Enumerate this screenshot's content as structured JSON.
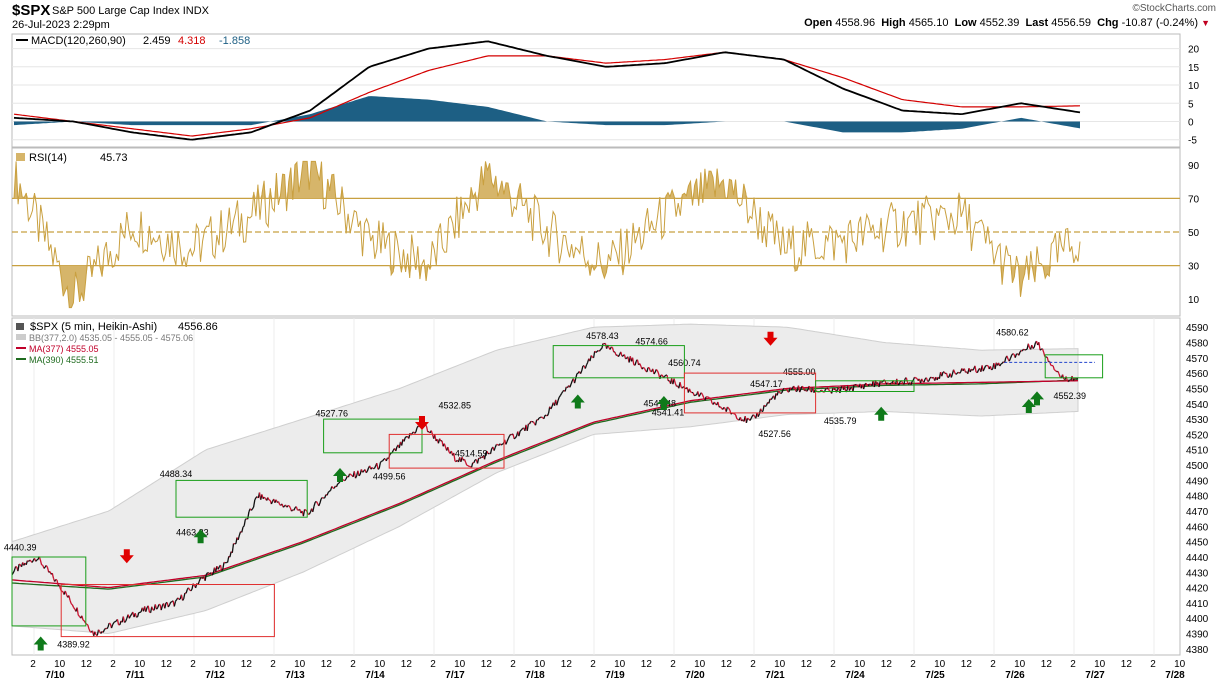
{
  "header": {
    "symbol": "$SPX",
    "name": "S&P 500 Large Cap Index",
    "exchange": "INDX",
    "datetime": "26-Jul-2023 2:29pm",
    "credit": "©StockCharts.com",
    "open_label": "Open",
    "open": "4558.96",
    "high_label": "High",
    "high": "4565.10",
    "low_label": "Low",
    "low": "4552.39",
    "last_label": "Last",
    "last": "4556.59",
    "chg_label": "Chg",
    "chg": "-10.87 (-0.24%)"
  },
  "colors": {
    "price_up": "#101010",
    "price_down": "#c8102e",
    "bb_fill": "#ececec",
    "ma377": "#c0002a",
    "ma390": "#1f6b1f",
    "macd_line": "#000000",
    "signal_line": "#d40000",
    "histogram": "#1d5f84",
    "rsi_line": "#c9a040",
    "buy_arrow": "#0f7a1a",
    "sell_arrow": "#e00000"
  },
  "chart_data": [
    {
      "type": "area",
      "title": "MACD(120,260,90)",
      "values_label": [
        "2.459",
        "4.318",
        "-1.858"
      ],
      "ylim": [
        -7,
        24
      ],
      "y_ticks": [
        20,
        15,
        10,
        5,
        0,
        -5
      ],
      "x": [
        0,
        1,
        2,
        3,
        4,
        5,
        6,
        7,
        8,
        9,
        10,
        11,
        12,
        13,
        14,
        15,
        16,
        17,
        18
      ],
      "series": [
        {
          "role": "macd",
          "values": [
            1,
            0,
            -3,
            -5,
            -3,
            3,
            15,
            20,
            22,
            18,
            15,
            16,
            19,
            17,
            9,
            3,
            2,
            5,
            2.5
          ]
        },
        {
          "role": "signal",
          "values": [
            2,
            0,
            -2,
            -4,
            -2,
            1,
            8,
            14,
            18,
            18,
            16,
            17,
            19,
            17,
            12,
            6,
            4,
            4,
            4.3
          ]
        },
        {
          "role": "histogram",
          "values": [
            -1,
            0,
            -1,
            -1,
            -1,
            2,
            7,
            6,
            4,
            0,
            -1,
            -1,
            0,
            0,
            -3,
            -3,
            -2,
            1,
            -1.9
          ]
        }
      ]
    },
    {
      "type": "line",
      "title": "RSI(14)",
      "value_label": "45.73",
      "ylim": [
        0,
        100
      ],
      "y_ticks": [
        90,
        70,
        50,
        30,
        10
      ],
      "levels": [
        70,
        50,
        30
      ],
      "x": [
        0,
        1,
        2,
        3,
        4,
        5,
        6,
        7,
        8,
        9,
        10,
        11,
        12,
        13,
        14,
        15,
        16,
        17,
        18
      ],
      "values": [
        85,
        10,
        55,
        40,
        60,
        88,
        45,
        30,
        85,
        50,
        30,
        60,
        80,
        40,
        45,
        55,
        60,
        20,
        45.73
      ]
    },
    {
      "type": "line",
      "title": "$SPX (5 min, Heikin-Ashi)",
      "value_label": "4556.86",
      "legend": [
        {
          "label": "BB(377,2.0)",
          "values": "4535.05 - 4555.05 - 4575.06"
        },
        {
          "label": "MA(377)",
          "value": "4555.05"
        },
        {
          "label": "MA(390)",
          "value": "4555.51"
        }
      ],
      "ylim": [
        4376,
        4596
      ],
      "y_ticks": [
        4590,
        4580,
        4570,
        4560,
        4550,
        4540,
        4530,
        4520,
        4510,
        4500,
        4490,
        4480,
        4470,
        4460,
        4450,
        4440,
        4430,
        4420,
        4410,
        4400,
        4390,
        4380
      ],
      "x_ticks": [
        "2",
        "10",
        "12",
        "2",
        "10",
        "12",
        "2",
        "10",
        "12",
        "2",
        "10",
        "12",
        "2",
        "10",
        "12",
        "2",
        "10",
        "12",
        "2",
        "10",
        "12",
        "2",
        "10",
        "12",
        "2",
        "10",
        "12",
        "2",
        "10",
        "12",
        "2",
        "10",
        "12",
        "2",
        "10",
        "12",
        "2",
        "10",
        "12",
        "2",
        "10",
        "12",
        "2",
        "10",
        "12",
        "2",
        "10",
        "12",
        "2",
        "10",
        "12",
        "2",
        "10",
        "12",
        "2"
      ],
      "date_labels": [
        "7/10",
        "7/11",
        "7/12",
        "7/13",
        "7/14",
        "7/17",
        "7/18",
        "7/19",
        "7/20",
        "7/21",
        "7/24",
        "7/25",
        "7/26",
        "7/27",
        "7/28"
      ],
      "x": [
        0,
        0.3,
        0.6,
        1.0,
        1.6,
        2.0,
        2.3,
        2.6,
        3.0,
        3.6,
        4.0,
        4.5,
        5.0,
        5.4,
        5.6,
        6.0,
        6.5,
        7.0,
        7.2,
        7.5,
        8.0,
        8.4,
        9.0,
        9.3,
        9.5,
        10.0,
        10.5,
        11.0,
        11.5,
        12.0,
        12.5,
        12.8,
        13.0
      ],
      "values": [
        4430,
        4440,
        4420,
        4390,
        4405,
        4410,
        4425,
        4435,
        4480,
        4468,
        4490,
        4500,
        4527,
        4505,
        4500,
        4515,
        4532,
        4565,
        4578,
        4570,
        4556,
        4545,
        4528,
        4545,
        4550,
        4548,
        4553,
        4555,
        4560,
        4565,
        4580,
        4557,
        4556.6
      ],
      "bb_upper": [
        4450,
        4470,
        4510,
        4530,
        4550,
        4575,
        4590,
        4592,
        4590,
        4580,
        4575,
        4576
      ],
      "bb_lower": [
        4395,
        4390,
        4405,
        4430,
        4460,
        4495,
        4520,
        4525,
        4533,
        4535,
        4532,
        4535
      ],
      "ma377": [
        4425,
        4420,
        4428,
        4450,
        4475,
        4503,
        4528,
        4542,
        4550,
        4553,
        4554,
        4555.05
      ],
      "ma390": [
        4423,
        4419,
        4427,
        4449,
        4474,
        4502,
        4527,
        4541,
        4549,
        4552,
        4553,
        4555.51
      ],
      "annotations": [
        "4440.39",
        "4389.92",
        "4488.34",
        "4463.23",
        "4527.76",
        "4499.56",
        "4514.59",
        "4532.85",
        "4578.43",
        "4574.66",
        "4547.48",
        "4560.74",
        "4541.41",
        "4547.17",
        "4555.00",
        "4527.56",
        "4535.79",
        "4580.62",
        "4552.39"
      ],
      "signals": {
        "buy": 8,
        "sell": 3
      }
    }
  ]
}
